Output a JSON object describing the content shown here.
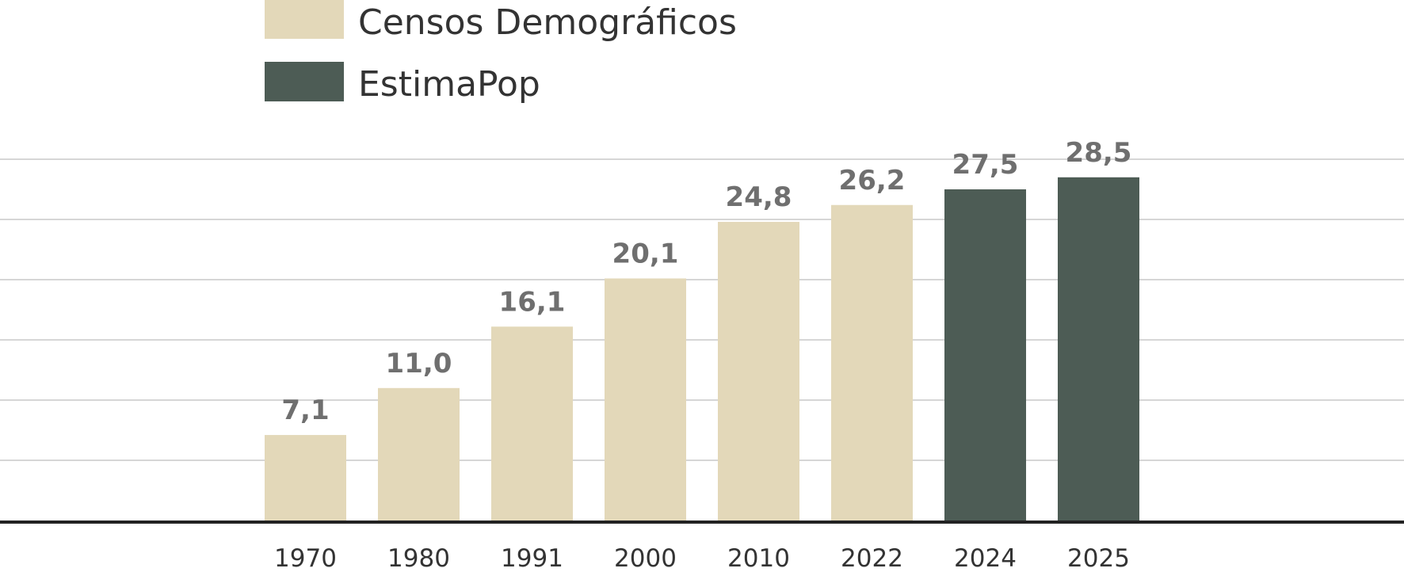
{
  "chart_data": {
    "type": "bar",
    "categories": [
      "1970",
      "1980",
      "1991",
      "2000",
      "2010",
      "2022",
      "2024",
      "2025"
    ],
    "series": [
      {
        "name": "Censos Demográficos",
        "color": "#E3D8B9",
        "values": [
          7.1,
          11.0,
          16.1,
          20.1,
          24.8,
          26.2,
          null,
          null
        ]
      },
      {
        "name": "EstimaPop",
        "color": "#4D5C55",
        "values": [
          null,
          null,
          null,
          null,
          null,
          null,
          27.5,
          28.5
        ]
      }
    ],
    "data_labels": [
      "7,1",
      "11,0",
      "16,1",
      "20,1",
      "24,8",
      "26,2",
      "27,5",
      "28,5"
    ],
    "ylim": [
      0,
      30
    ],
    "grid": true,
    "legend_position": "top-left",
    "title": "",
    "xlabel": "",
    "ylabel": ""
  }
}
